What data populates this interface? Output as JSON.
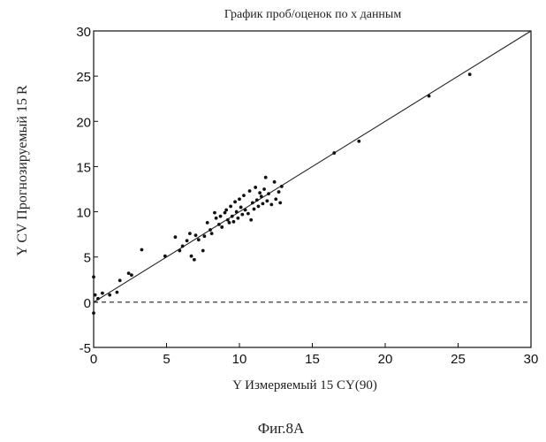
{
  "chart_data": {
    "type": "scatter",
    "title": "График проб/оценок по х данным",
    "xlabel": "Y Измеряемый 15 CY(90)",
    "ylabel": "Y CV Прогнозируемый 15 R",
    "caption": "Фиг.8А",
    "xlim": [
      0,
      30
    ],
    "ylim": [
      -5,
      30
    ],
    "xticks": [
      0,
      5,
      10,
      15,
      20,
      25,
      30
    ],
    "yticks": [
      -5,
      0,
      5,
      10,
      15,
      20,
      25,
      30
    ],
    "xtick_labels": [
      "0",
      "5",
      "10",
      "15",
      "20",
      "25",
      "30"
    ],
    "ytick_labels": [
      "-5",
      "0",
      "5",
      "10",
      "15",
      "20",
      "25",
      "30"
    ],
    "grid": false,
    "reference_lines": [
      {
        "style": "solid",
        "from": [
          0,
          0
        ],
        "to": [
          30,
          30
        ]
      },
      {
        "style": "dashed",
        "from": [
          0,
          0
        ],
        "to": [
          30,
          0
        ]
      }
    ],
    "points": [
      [
        0.0,
        2.8
      ],
      [
        0.0,
        -1.2
      ],
      [
        0.1,
        0.8
      ],
      [
        0.3,
        0.4
      ],
      [
        0.6,
        1.0
      ],
      [
        1.1,
        0.8
      ],
      [
        1.6,
        1.1
      ],
      [
        1.8,
        2.4
      ],
      [
        2.4,
        3.2
      ],
      [
        2.6,
        3.0
      ],
      [
        3.3,
        5.8
      ],
      [
        4.9,
        5.1
      ],
      [
        5.6,
        7.2
      ],
      [
        5.9,
        5.7
      ],
      [
        6.1,
        6.2
      ],
      [
        6.4,
        6.8
      ],
      [
        6.6,
        7.6
      ],
      [
        6.7,
        5.1
      ],
      [
        6.9,
        4.7
      ],
      [
        7.0,
        7.4
      ],
      [
        7.2,
        6.9
      ],
      [
        7.5,
        5.7
      ],
      [
        7.6,
        7.3
      ],
      [
        7.8,
        8.8
      ],
      [
        8.0,
        8.0
      ],
      [
        8.1,
        7.6
      ],
      [
        8.3,
        9.9
      ],
      [
        8.4,
        9.3
      ],
      [
        8.6,
        8.6
      ],
      [
        8.7,
        9.5
      ],
      [
        8.8,
        8.3
      ],
      [
        9.0,
        9.9
      ],
      [
        9.1,
        10.2
      ],
      [
        9.2,
        9.1
      ],
      [
        9.3,
        8.8
      ],
      [
        9.4,
        10.6
      ],
      [
        9.5,
        9.5
      ],
      [
        9.6,
        8.9
      ],
      [
        9.7,
        11.1
      ],
      [
        9.8,
        10.0
      ],
      [
        9.9,
        9.3
      ],
      [
        10.0,
        11.4
      ],
      [
        10.1,
        10.5
      ],
      [
        10.2,
        9.7
      ],
      [
        10.3,
        11.8
      ],
      [
        10.4,
        10.2
      ],
      [
        10.6,
        9.8
      ],
      [
        10.7,
        12.3
      ],
      [
        10.8,
        9.1
      ],
      [
        10.9,
        11.0
      ],
      [
        11.0,
        10.3
      ],
      [
        11.1,
        12.7
      ],
      [
        11.2,
        11.3
      ],
      [
        11.3,
        10.6
      ],
      [
        11.4,
        12.1
      ],
      [
        11.5,
        11.7
      ],
      [
        11.6,
        10.9
      ],
      [
        11.7,
        12.5
      ],
      [
        11.8,
        13.8
      ],
      [
        11.9,
        11.2
      ],
      [
        12.0,
        12.0
      ],
      [
        12.2,
        10.8
      ],
      [
        12.4,
        13.3
      ],
      [
        12.5,
        11.4
      ],
      [
        12.7,
        12.2
      ],
      [
        12.8,
        11.0
      ],
      [
        12.9,
        12.8
      ],
      [
        16.5,
        16.5
      ],
      [
        18.2,
        17.8
      ],
      [
        23.0,
        22.8
      ],
      [
        25.8,
        25.2
      ]
    ]
  }
}
